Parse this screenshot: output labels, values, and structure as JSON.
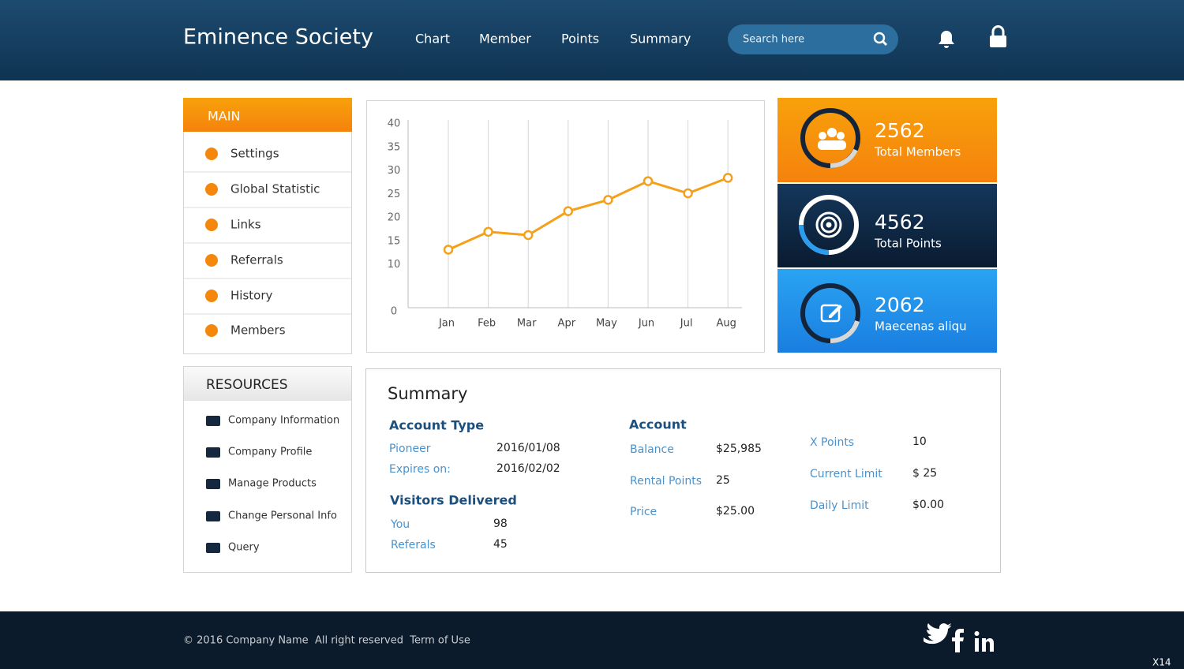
{
  "header": {
    "title": "Eminence Society",
    "nav": [
      "Chart",
      "Member",
      "Points",
      "Summary"
    ],
    "search_placeholder": "Search here"
  },
  "sidebar": {
    "main": {
      "title": "MAIN",
      "items": [
        "Settings",
        "Global Statistic",
        "Links",
        "Referrals",
        "History",
        "Members"
      ]
    },
    "resources": {
      "title": "RESOURCES",
      "items": [
        "Company Information",
        "Company Profile",
        "Manage Products",
        "Change Personal Info",
        "Query"
      ]
    }
  },
  "chart_data": {
    "type": "line",
    "categories": [
      "Jan",
      "Feb",
      "Mar",
      "Apr",
      "May",
      "Jun",
      "Jul",
      "Aug"
    ],
    "values": [
      13.2,
      17,
      16.3,
      21.4,
      23.8,
      27.8,
      25.2,
      28.5
    ],
    "color": "#f5a01a",
    "ylim": [
      0,
      40
    ],
    "yticks": [
      0,
      10,
      15,
      20,
      25,
      30,
      35,
      40
    ],
    "grid": "x"
  },
  "stats": [
    {
      "value": "2562",
      "label": "Total Members"
    },
    {
      "value": "4562",
      "label": "Total Points"
    },
    {
      "value": "2062",
      "label": "Maecenas aliqu"
    }
  ],
  "summary": {
    "title": "Summary",
    "account_type": {
      "title": "Account Type",
      "rows": [
        [
          "Pioneer",
          "2016/01/08"
        ],
        [
          "Expires on:",
          "2016/02/02"
        ]
      ]
    },
    "visitors": {
      "title": "Visitors Delivered",
      "rows": [
        [
          "You",
          "98"
        ],
        [
          "Referals",
          "45"
        ]
      ]
    },
    "account": {
      "title": "Account",
      "rows": [
        [
          "Balance",
          "$25,985"
        ],
        [
          "Rental Points",
          "25"
        ],
        [
          "Price",
          "$25.00"
        ]
      ]
    },
    "limits": {
      "rows": [
        [
          "X Points",
          "10"
        ],
        [
          "Current Limit",
          "$ 25"
        ],
        [
          "Daily Limit",
          "$0.00"
        ]
      ]
    }
  },
  "footer": {
    "text": "© 2016 Company Name  All right reserved  Term of Use",
    "badge": "X14"
  }
}
